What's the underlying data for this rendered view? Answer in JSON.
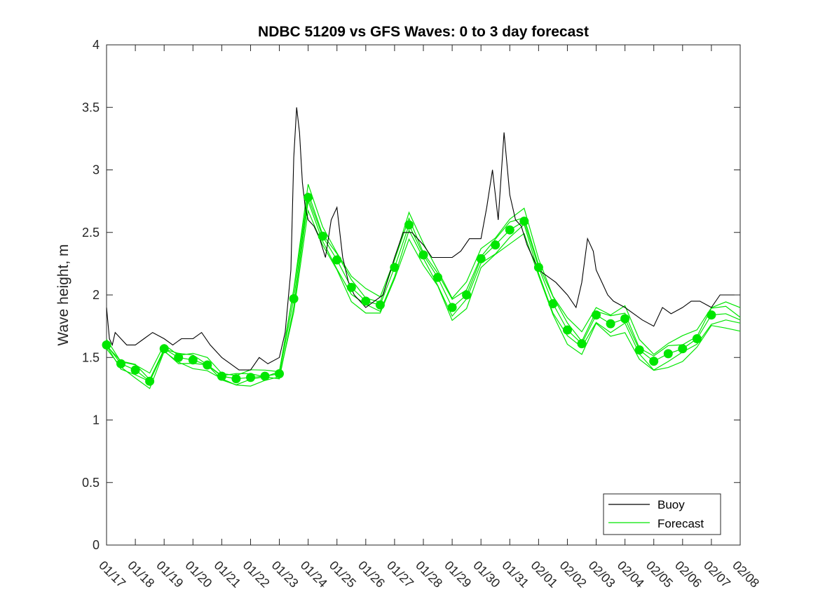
{
  "chart_data": {
    "type": "line",
    "title": "NDBC 51209 vs GFS Waves: 0 to 3 day forecast",
    "xlabel": "",
    "ylabel": "Wave height, m",
    "xlim": [
      "01/17",
      "02/08"
    ],
    "ylim": [
      0,
      4
    ],
    "x_tick_labels": [
      "01/17",
      "01/18",
      "01/19",
      "01/20",
      "01/21",
      "01/22",
      "01/23",
      "01/24",
      "01/25",
      "01/26",
      "01/27",
      "01/28",
      "01/29",
      "01/30",
      "01/31",
      "02/01",
      "02/02",
      "02/03",
      "02/04",
      "02/05",
      "02/06",
      "02/07",
      "02/08"
    ],
    "y_ticks": [
      0,
      0.5,
      1,
      1.5,
      2,
      2.5,
      3,
      3.5,
      4
    ],
    "y_tick_labels": [
      "0",
      "0.5",
      "1",
      "1.5",
      "2",
      "2.5",
      "3",
      "3.5",
      "4"
    ],
    "grid": false,
    "legend_position": "bottom-right",
    "colors": {
      "buoy": "#000000",
      "forecast": "#00e600"
    },
    "series": [
      {
        "name": "Buoy",
        "x_days": [
          0.0,
          0.1,
          0.2,
          0.3,
          0.5,
          0.7,
          1.0,
          1.3,
          1.6,
          2.0,
          2.3,
          2.6,
          3.0,
          3.3,
          3.6,
          4.0,
          4.3,
          4.6,
          5.0,
          5.3,
          5.6,
          6.0,
          6.2,
          6.4,
          6.5,
          6.6,
          6.7,
          6.8,
          6.9,
          7.0,
          7.2,
          7.4,
          7.6,
          7.8,
          8.0,
          8.2,
          8.4,
          8.6,
          8.8,
          9.0,
          9.3,
          9.6,
          10.0,
          10.3,
          10.6,
          11.0,
          11.3,
          11.6,
          12.0,
          12.3,
          12.6,
          13.0,
          13.2,
          13.4,
          13.6,
          13.8,
          14.0,
          14.2,
          14.4,
          14.6,
          14.8,
          15.0,
          15.3,
          15.6,
          16.0,
          16.3,
          16.5,
          16.7,
          16.9,
          17.0,
          17.2,
          17.4,
          17.6,
          18.0,
          18.3,
          18.6,
          19.0,
          19.3,
          19.6,
          20.0,
          20.3,
          20.6,
          21.0,
          21.3,
          21.6,
          21.8
        ],
        "values": [
          1.9,
          1.65,
          1.6,
          1.7,
          1.65,
          1.6,
          1.6,
          1.65,
          1.7,
          1.65,
          1.6,
          1.65,
          1.65,
          1.7,
          1.6,
          1.5,
          1.45,
          1.4,
          1.4,
          1.5,
          1.45,
          1.5,
          1.7,
          2.2,
          3.1,
          3.5,
          3.3,
          2.9,
          2.7,
          2.6,
          2.55,
          2.45,
          2.3,
          2.6,
          2.7,
          2.3,
          2.1,
          2.0,
          1.95,
          1.9,
          1.95,
          2.0,
          2.3,
          2.5,
          2.5,
          2.4,
          2.3,
          2.3,
          2.3,
          2.35,
          2.45,
          2.45,
          2.7,
          3.0,
          2.6,
          3.3,
          2.8,
          2.6,
          2.55,
          2.4,
          2.3,
          2.2,
          2.15,
          2.1,
          2.0,
          1.9,
          2.1,
          2.45,
          2.35,
          2.2,
          2.1,
          2.0,
          1.95,
          1.9,
          1.85,
          1.8,
          1.75,
          1.9,
          1.85,
          1.9,
          1.95,
          1.95,
          1.9,
          2.0,
          2.0,
          2.0
        ]
      },
      {
        "name": "Forecast",
        "x_days": [
          0.0,
          0.5,
          1.0,
          1.5,
          2.0,
          2.5,
          3.0,
          3.5,
          4.0,
          4.5,
          5.0,
          5.5,
          6.0,
          6.5,
          7.0,
          7.5,
          8.0,
          8.5,
          9.0,
          9.5,
          10.0,
          10.5,
          11.0,
          11.5,
          12.0,
          12.5,
          13.0,
          13.5,
          14.0,
          14.5,
          15.0,
          15.5,
          16.0,
          16.5,
          17.0,
          17.5,
          18.0,
          18.5,
          19.0,
          19.5,
          20.0,
          20.5,
          21.0,
          21.5,
          22.0
        ],
        "values": [
          1.6,
          1.45,
          1.4,
          1.31,
          1.57,
          1.5,
          1.48,
          1.44,
          1.35,
          1.33,
          1.34,
          1.35,
          1.37,
          1.97,
          2.78,
          2.47,
          2.28,
          2.06,
          1.95,
          1.92,
          2.22,
          2.56,
          2.32,
          2.14,
          1.9,
          2.0,
          2.29,
          2.4,
          2.52,
          2.59,
          2.22,
          1.93,
          1.72,
          1.61,
          1.84,
          1.77,
          1.81,
          1.56,
          1.47,
          1.53,
          1.57,
          1.65,
          1.84,
          1.85,
          1.8
        ]
      }
    ]
  }
}
